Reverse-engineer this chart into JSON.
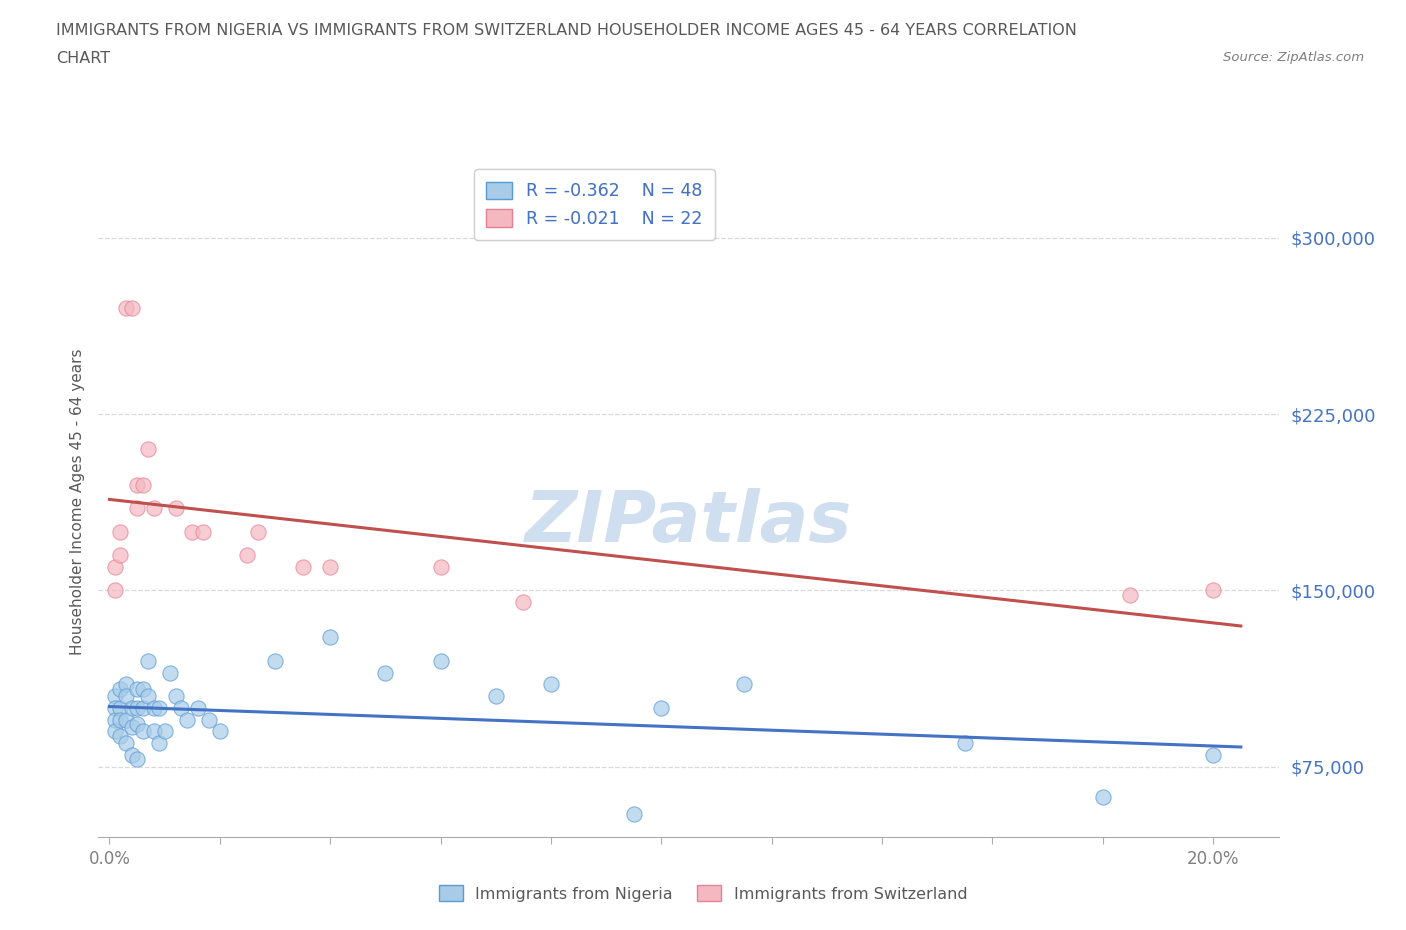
{
  "title_line1": "IMMIGRANTS FROM NIGERIA VS IMMIGRANTS FROM SWITZERLAND HOUSEHOLDER INCOME AGES 45 - 64 YEARS CORRELATION",
  "title_line2": "CHART",
  "source_text": "Source: ZipAtlas.com",
  "ylabel": "Householder Income Ages 45 - 64 years",
  "xlim": [
    -0.002,
    0.212
  ],
  "ylim": [
    45000,
    330000
  ],
  "yticks": [
    75000,
    150000,
    225000,
    300000
  ],
  "xticks": [
    0.0,
    0.02,
    0.04,
    0.06,
    0.08,
    0.1,
    0.12,
    0.14,
    0.16,
    0.18,
    0.2
  ],
  "xtick_labels_show": [
    "0.0%",
    "",
    "",
    "",
    "",
    "",
    "",
    "",
    "",
    "",
    "20.0%"
  ],
  "legend_r_nigeria": "R = -0.362",
  "legend_n_nigeria": "N = 48",
  "legend_r_switzerland": "R = -0.021",
  "legend_n_switzerland": "N = 22",
  "nigeria_color": "#a8cce8",
  "nigeria_edge_color": "#5b9bd5",
  "nigeria_line_color": "#4472c4",
  "switzerland_color": "#f4b8c1",
  "switzerland_edge_color": "#e88094",
  "switzerland_line_color": "#c0504d",
  "legend_text_color": "#4472c4",
  "tick_color_y": "#4472c4",
  "tick_color_x": "#7f7f7f",
  "title_color": "#595959",
  "source_color": "#7f7f7f",
  "ylabel_color": "#595959",
  "grid_color": "#d9d9d9",
  "background_color": "#ffffff",
  "watermark_text": "ZIPatlas",
  "watermark_color": "#d0dff0",
  "nigeria_x": [
    0.001,
    0.001,
    0.001,
    0.001,
    0.002,
    0.002,
    0.002,
    0.002,
    0.003,
    0.003,
    0.003,
    0.003,
    0.004,
    0.004,
    0.004,
    0.005,
    0.005,
    0.005,
    0.005,
    0.006,
    0.006,
    0.006,
    0.007,
    0.007,
    0.008,
    0.008,
    0.009,
    0.009,
    0.01,
    0.011,
    0.012,
    0.013,
    0.014,
    0.016,
    0.018,
    0.02,
    0.03,
    0.04,
    0.05,
    0.06,
    0.07,
    0.08,
    0.095,
    0.1,
    0.115,
    0.155,
    0.18,
    0.2
  ],
  "nigeria_y": [
    105000,
    100000,
    95000,
    90000,
    108000,
    100000,
    95000,
    88000,
    110000,
    105000,
    95000,
    85000,
    100000,
    92000,
    80000,
    108000,
    100000,
    93000,
    78000,
    108000,
    100000,
    90000,
    120000,
    105000,
    100000,
    90000,
    100000,
    85000,
    90000,
    115000,
    105000,
    100000,
    95000,
    100000,
    95000,
    90000,
    120000,
    130000,
    115000,
    120000,
    105000,
    110000,
    55000,
    100000,
    110000,
    85000,
    62000,
    80000
  ],
  "switzerland_x": [
    0.001,
    0.001,
    0.002,
    0.002,
    0.003,
    0.004,
    0.005,
    0.005,
    0.006,
    0.007,
    0.008,
    0.012,
    0.015,
    0.017,
    0.025,
    0.027,
    0.035,
    0.04,
    0.06,
    0.075,
    0.185,
    0.2
  ],
  "switzerland_y": [
    150000,
    160000,
    175000,
    165000,
    270000,
    270000,
    195000,
    185000,
    195000,
    210000,
    185000,
    185000,
    175000,
    175000,
    165000,
    175000,
    160000,
    160000,
    160000,
    145000,
    148000,
    150000
  ]
}
